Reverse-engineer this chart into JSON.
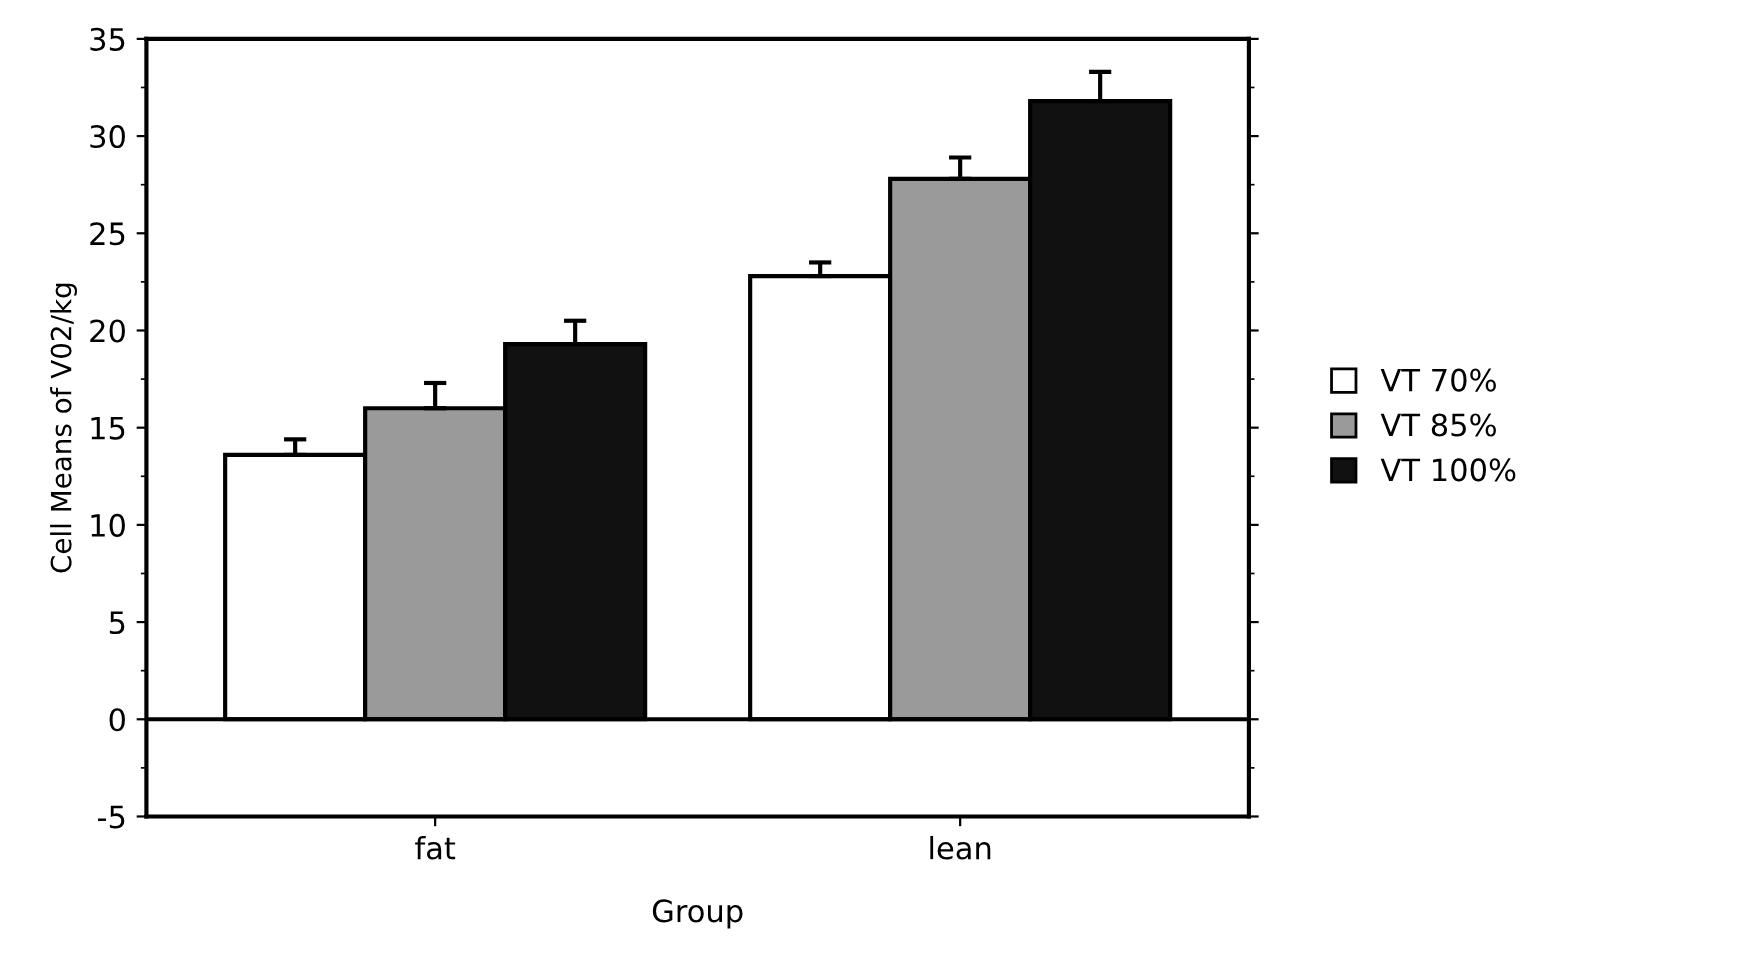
{
  "chart_data": {
    "type": "bar",
    "xlabel": "Group",
    "ylabel": "Cell Means of V02/kg",
    "categories": [
      "fat",
      "lean"
    ],
    "series": [
      {
        "name": "VT 70%",
        "color": "#ffffff",
        "values": [
          13.6,
          22.8
        ],
        "errors": [
          0.8,
          0.7
        ]
      },
      {
        "name": "VT 85%",
        "color": "#9a9a9a",
        "values": [
          16.0,
          27.8
        ],
        "errors": [
          1.3,
          1.1
        ]
      },
      {
        "name": "VT 100%",
        "color": "#111111",
        "values": [
          19.3,
          31.8
        ],
        "errors": [
          1.2,
          1.5
        ]
      }
    ],
    "ylim": [
      -5,
      35
    ],
    "yticks": [
      -5,
      0,
      5,
      10,
      15,
      20,
      25,
      30,
      35
    ],
    "ref_lines": [
      {
        "axis": "y",
        "value": 0,
        "color": "#000000"
      }
    ],
    "grid": false,
    "legend": "right"
  }
}
